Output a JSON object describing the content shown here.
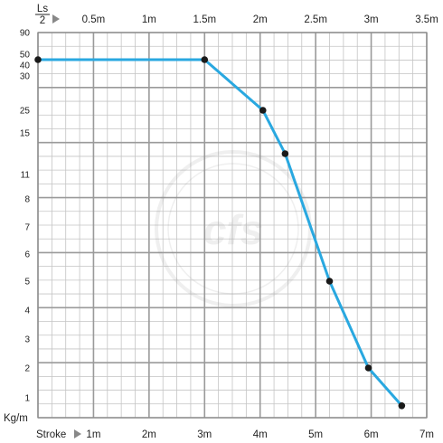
{
  "chart_data": {
    "type": "line",
    "title": "",
    "top_axis": {
      "label_top": "Ls",
      "label_bottom": "2",
      "ticks": [
        "0.5m",
        "1m",
        "1.5m",
        "2m",
        "2.5m",
        "3m",
        "3.5m"
      ],
      "values": [
        0.5,
        1,
        1.5,
        2,
        2.5,
        3,
        3.5
      ],
      "range": [
        0,
        3.5
      ]
    },
    "bottom_axis": {
      "label": "Stroke",
      "ticks": [
        "1m",
        "2m",
        "3m",
        "4m",
        "5m",
        "6m",
        "7m"
      ],
      "values": [
        1,
        2,
        3,
        4,
        5,
        6,
        7
      ],
      "range": [
        0,
        7
      ]
    },
    "y_axis": {
      "label": "Kg/m",
      "ticks": [
        "90",
        "50",
        "40",
        "30",
        "25",
        "15",
        "11",
        "8",
        "7",
        "6",
        "5",
        "4",
        "3",
        "2",
        "1"
      ],
      "values": [
        90,
        50,
        40,
        30,
        25,
        15,
        11,
        8,
        7,
        6,
        5,
        4,
        3,
        2,
        1
      ],
      "scale": "custom-nonlinear"
    },
    "grid": true,
    "series": [
      {
        "color": "#29a8e0",
        "points": [
          {
            "x": 0.0,
            "y": 45
          },
          {
            "x": 3.0,
            "y": 45
          },
          {
            "x": 4.05,
            "y": 25
          },
          {
            "x": 4.45,
            "y": 13
          },
          {
            "x": 5.25,
            "y": 5
          },
          {
            "x": 5.95,
            "y": 2
          },
          {
            "x": 6.55,
            "y": 0.6
          }
        ]
      }
    ],
    "watermark": "cfs"
  }
}
